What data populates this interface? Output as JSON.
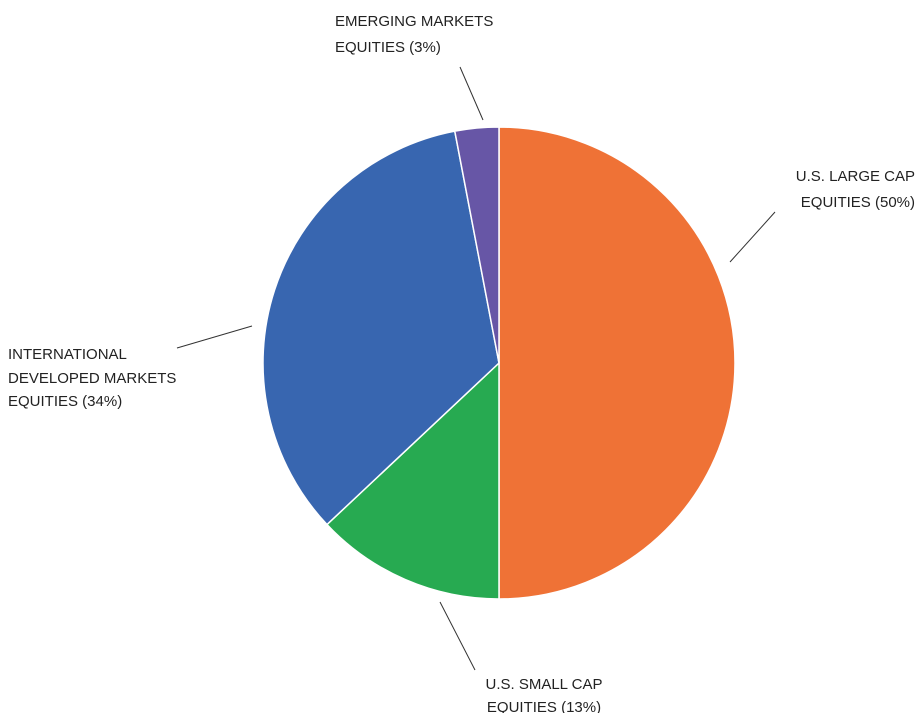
{
  "chart_data": {
    "type": "pie",
    "title": "",
    "slices": [
      {
        "category": "U.S. LARGE CAP EQUITIES",
        "value": 50,
        "label_lines": [
          "U.S. LARGE CAP",
          "EQUITIES (50%)"
        ],
        "color": "#EF7236"
      },
      {
        "category": "U.S. SMALL CAP EQUITIES",
        "value": 13,
        "label_lines": [
          "U.S. SMALL CAP",
          "EQUITIES (13%)"
        ],
        "color": "#27AA51"
      },
      {
        "category": "INTERNATIONAL DEVELOPED MARKETS EQUITIES",
        "value": 34,
        "label_lines": [
          "INTERNATIONAL",
          "DEVELOPED MARKETS",
          "EQUITIES (34%)"
        ],
        "color": "#3866B0"
      },
      {
        "category": "EMERGING MARKETS EQUITIES",
        "value": 3,
        "label_lines": [
          "EMERGING MARKETS",
          "EQUITIES (3%)"
        ],
        "color": "#6756A6"
      }
    ],
    "start": "12 o'clock",
    "direction": "clockwise",
    "labels": "outside with leader lines",
    "legend": "none"
  }
}
